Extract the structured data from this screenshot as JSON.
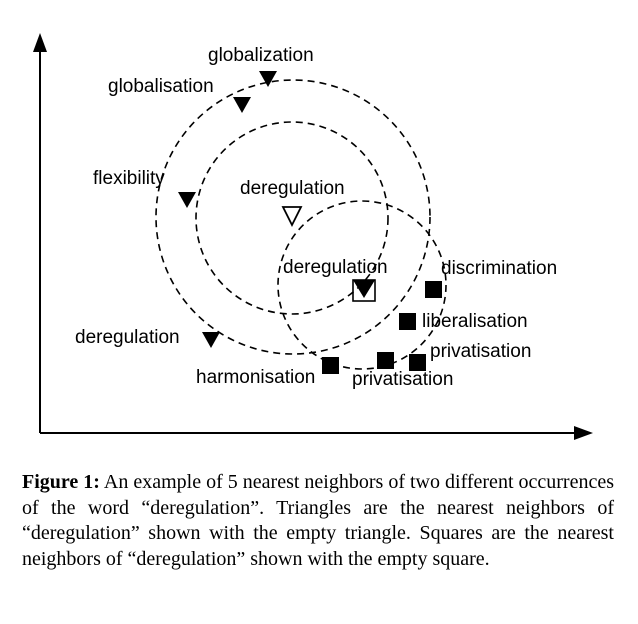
{
  "figure": {
    "labels": {
      "globalization": "globalization",
      "globalisation": "globalisation",
      "flexibility": "flexibility",
      "deregulation_center": "deregulation",
      "deregulation_square": "deregulation",
      "deregulation_left": "deregulation",
      "discrimination": "discrimination",
      "liberalisation": "liberalisation",
      "privatisation_1": "privatisation",
      "privatisation_2": "privatisation",
      "harmonisation": "harmonisation"
    }
  },
  "caption": {
    "label": "Figure 1:",
    "text": "An example of 5 nearest neighbors of two different occurrences of the word “deregulation”. Triangles are the nearest neighbors of “deregulation” shown with the empty triangle. Squares are the nearest neighbors of “deregulation” shown with the empty square."
  }
}
